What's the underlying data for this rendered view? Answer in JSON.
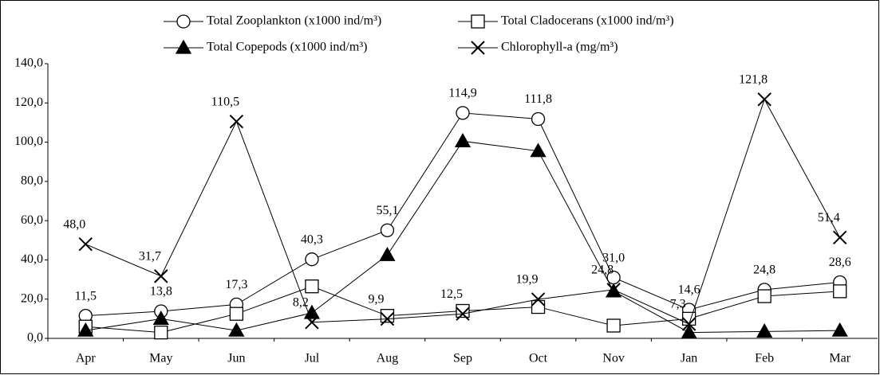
{
  "chart_data": {
    "type": "line",
    "categories": [
      "Apr",
      "May",
      "Jun",
      "Jul",
      "Aug",
      "Sep",
      "Oct",
      "Nov",
      "Jan",
      "Feb",
      "Mar"
    ],
    "series": [
      {
        "name": "Total Zooplankton (x1000 ind/m³)",
        "color": "#000000",
        "marker": "circle",
        "values": [
          11.5,
          13.8,
          17.3,
          40.3,
          55.1,
          114.9,
          111.8,
          31.0,
          14.6,
          24.8,
          28.6
        ],
        "value_labels": [
          "11,5",
          "13,8",
          "17,3",
          "40,3",
          "55,1",
          "114,9",
          "111,8",
          "31,0",
          "14,6",
          "24,8",
          "28,6"
        ]
      },
      {
        "name": "Total Cladocerans (x1000 ind/m³)",
        "color": "#000000",
        "marker": "square",
        "values": [
          6,
          3,
          12.5,
          26.5,
          11.5,
          14,
          16,
          6.5,
          10,
          21.5,
          24
        ]
      },
      {
        "name": "Total Copepods  (x1000 ind/m³)",
        "color": "#000000",
        "marker": "triangle",
        "values": [
          4,
          10,
          4,
          13,
          42.5,
          100.5,
          95.5,
          24,
          3,
          3.5,
          4
        ]
      },
      {
        "name": "Chlorophyll-a (mg/m³)",
        "color": "#000000",
        "marker": "x",
        "values": [
          48.0,
          31.7,
          110.5,
          8.2,
          9.9,
          12.5,
          19.9,
          24.8,
          7.3,
          121.8,
          51.4
        ],
        "value_labels": [
          "48,0",
          "31,7",
          "110,5",
          "8,2",
          "9,9",
          "12,5",
          "19,9",
          "24,8",
          "7,3",
          "121,8",
          "51,4"
        ]
      }
    ],
    "ylim": [
      0,
      140
    ],
    "yticks": [
      {
        "value": 0,
        "label": "0,0"
      },
      {
        "value": 20,
        "label": "20,0"
      },
      {
        "value": 40,
        "label": "40,0"
      },
      {
        "value": 60,
        "label": "60,0"
      },
      {
        "value": 80,
        "label": "80,0"
      },
      {
        "value": 100,
        "label": "100,0"
      },
      {
        "value": 120,
        "label": "120,0"
      },
      {
        "value": 140,
        "label": "140,0"
      }
    ],
    "grid": false
  }
}
